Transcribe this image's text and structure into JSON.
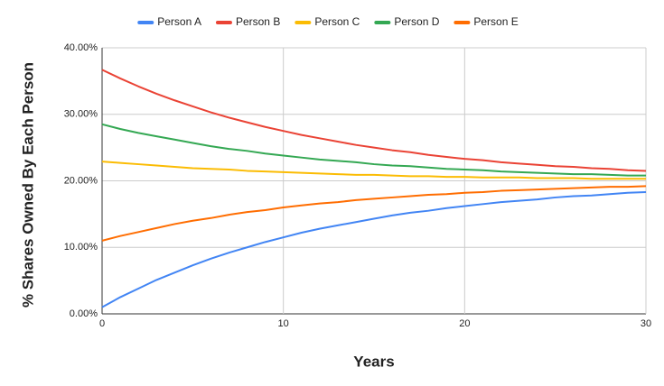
{
  "chart_data": {
    "type": "line",
    "x_label": "Years",
    "y_label": "% Shares Owned By Each Person",
    "x": [
      0,
      1,
      2,
      3,
      4,
      5,
      6,
      7,
      8,
      9,
      10,
      11,
      12,
      13,
      14,
      15,
      16,
      17,
      18,
      19,
      20,
      21,
      22,
      23,
      24,
      25,
      26,
      27,
      28,
      29,
      30
    ],
    "xlim": [
      0,
      30
    ],
    "xticks": [
      0,
      10,
      20,
      30
    ],
    "ylim": [
      0,
      40
    ],
    "yticks": [
      {
        "value": 0,
        "label": "0.00%"
      },
      {
        "value": 10,
        "label": "10.00%"
      },
      {
        "value": 20,
        "label": "20.00%"
      },
      {
        "value": 30,
        "label": "30.00%"
      },
      {
        "value": 40,
        "label": "40.00%"
      }
    ],
    "grid": true,
    "legend": "top",
    "series": [
      {
        "name": "Person A",
        "color": "#4285f4",
        "values": [
          1.0,
          2.5,
          3.8,
          5.1,
          6.2,
          7.3,
          8.3,
          9.2,
          10.0,
          10.8,
          11.5,
          12.2,
          12.8,
          13.3,
          13.8,
          14.3,
          14.8,
          15.2,
          15.5,
          15.9,
          16.2,
          16.5,
          16.8,
          17.0,
          17.2,
          17.5,
          17.7,
          17.8,
          18.0,
          18.2,
          18.3
        ]
      },
      {
        "name": "Person B",
        "color": "#ea4335",
        "values": [
          36.7,
          35.4,
          34.2,
          33.1,
          32.1,
          31.2,
          30.3,
          29.5,
          28.8,
          28.1,
          27.5,
          26.9,
          26.4,
          25.9,
          25.4,
          25.0,
          24.6,
          24.3,
          23.9,
          23.6,
          23.3,
          23.1,
          22.8,
          22.6,
          22.4,
          22.2,
          22.1,
          21.9,
          21.8,
          21.6,
          21.5
        ]
      },
      {
        "name": "Person C",
        "color": "#fbbc04",
        "values": [
          22.9,
          22.7,
          22.5,
          22.3,
          22.1,
          21.9,
          21.8,
          21.7,
          21.5,
          21.4,
          21.3,
          21.2,
          21.1,
          21.0,
          20.9,
          20.9,
          20.8,
          20.7,
          20.7,
          20.6,
          20.6,
          20.5,
          20.5,
          20.5,
          20.4,
          20.4,
          20.4,
          20.3,
          20.3,
          20.3,
          20.3
        ]
      },
      {
        "name": "Person D",
        "color": "#34a853",
        "values": [
          28.5,
          27.8,
          27.2,
          26.7,
          26.2,
          25.7,
          25.2,
          24.8,
          24.5,
          24.1,
          23.8,
          23.5,
          23.2,
          23.0,
          22.8,
          22.5,
          22.3,
          22.2,
          22.0,
          21.8,
          21.7,
          21.6,
          21.4,
          21.3,
          21.2,
          21.1,
          21.0,
          21.0,
          20.9,
          20.8,
          20.8
        ]
      },
      {
        "name": "Person E",
        "color": "#ff6d01",
        "values": [
          11.0,
          11.7,
          12.3,
          12.9,
          13.5,
          14.0,
          14.4,
          14.9,
          15.3,
          15.6,
          16.0,
          16.3,
          16.6,
          16.8,
          17.1,
          17.3,
          17.5,
          17.7,
          17.9,
          18.0,
          18.2,
          18.3,
          18.5,
          18.6,
          18.7,
          18.8,
          18.9,
          19.0,
          19.1,
          19.1,
          19.2
        ]
      }
    ]
  }
}
